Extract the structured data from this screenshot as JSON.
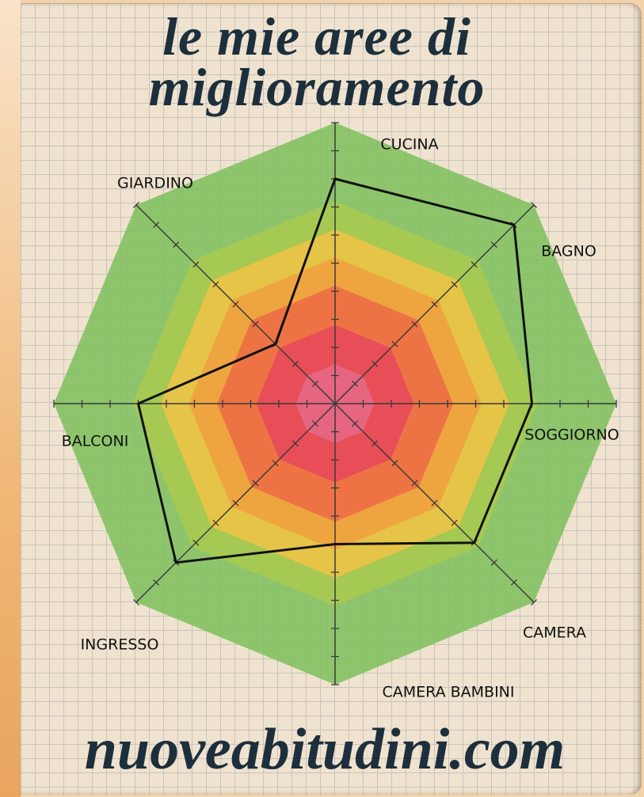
{
  "chart_data": {
    "type": "radar",
    "title": "le mie aree di miglioramento",
    "footer": "nuoveabitudini.com",
    "categories": [
      "CUCINA",
      "BAGNO",
      "SOGGIORNO",
      "CAMERA",
      "CAMERA BAMBINI",
      "INGRESSO",
      "BALCONI",
      "GIARDINO"
    ],
    "values": [
      8,
      9,
      7,
      7,
      5,
      8,
      7,
      3
    ],
    "color": "#111111",
    "rlim": [
      0,
      10
    ],
    "rticks": [
      1,
      2,
      3,
      4,
      5,
      6,
      7,
      8,
      9,
      10
    ]
  }
}
